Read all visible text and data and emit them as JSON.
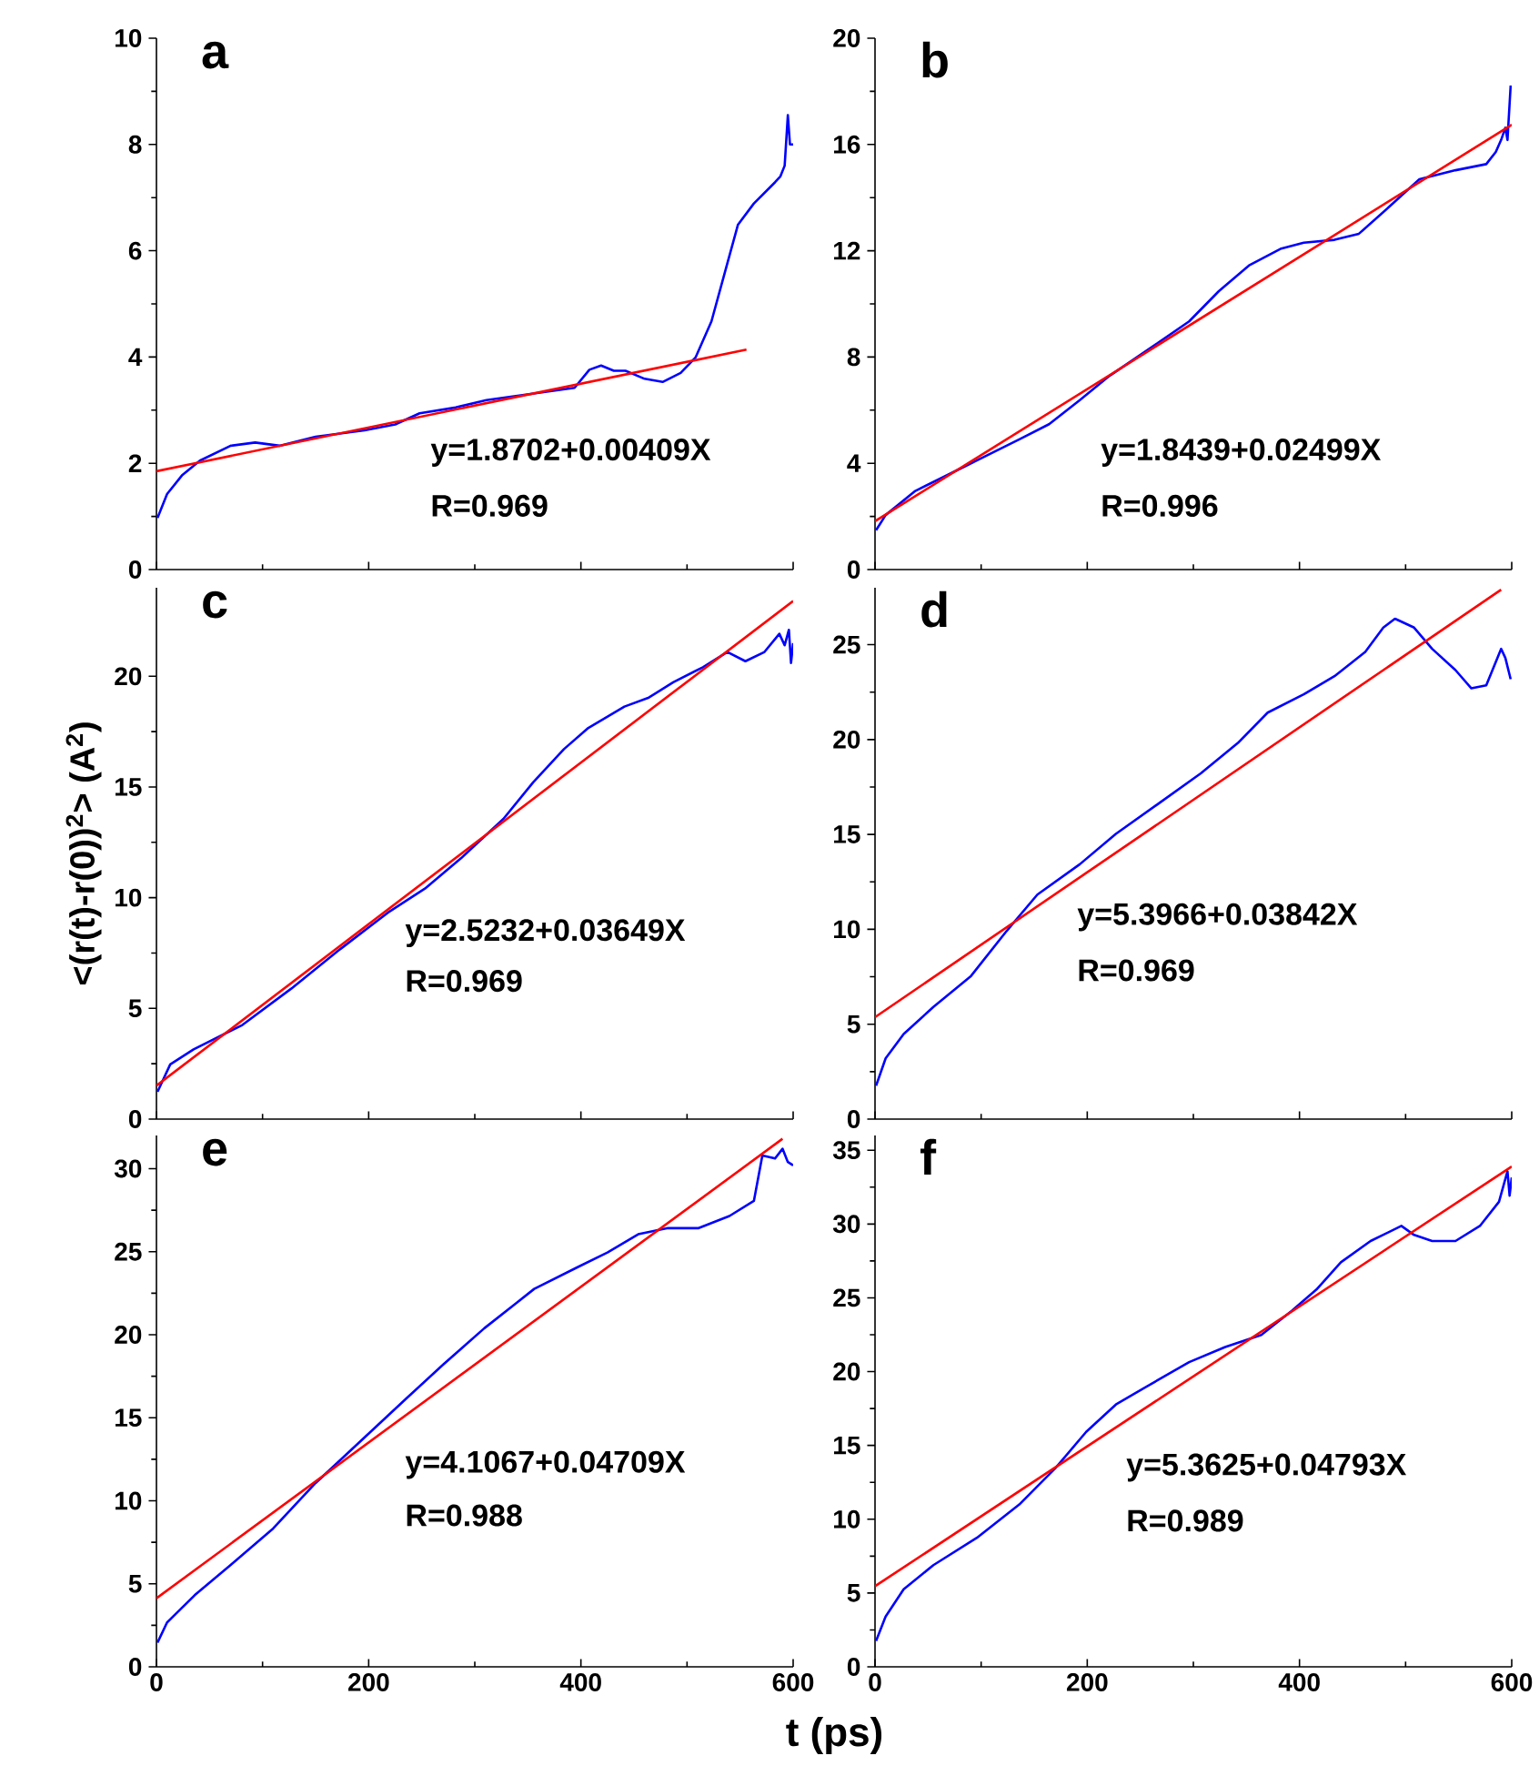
{
  "chart_data": [
    {
      "type": "line",
      "title": "a",
      "annotations": [
        "y=1.8702+0.00409X",
        "R=0.969"
      ],
      "xlim": [
        0,
        600
      ],
      "xticks": [
        0,
        200,
        400,
        600
      ],
      "ylim": [
        0,
        10
      ],
      "yticks": [
        0,
        2,
        4,
        6,
        8,
        10
      ],
      "tick_labels": "y",
      "series": [
        {
          "color": "#0000ff",
          "x": [
            1,
            10,
            24,
            41,
            70,
            93,
            116,
            150,
            196,
            225,
            248,
            282,
            311,
            351,
            394,
            408,
            419,
            431,
            442,
            460,
            477,
            494,
            508,
            523,
            537,
            548,
            563,
            583,
            588,
            592,
            595,
            597,
            600
          ],
          "values": [
            0.97,
            1.42,
            1.77,
            2.05,
            2.33,
            2.39,
            2.33,
            2.5,
            2.62,
            2.73,
            2.94,
            3.05,
            3.19,
            3.3,
            3.42,
            3.76,
            3.84,
            3.74,
            3.74,
            3.59,
            3.53,
            3.7,
            3.99,
            4.67,
            5.69,
            6.49,
            6.89,
            7.29,
            7.4,
            7.6,
            8.55,
            8.0,
            8.0
          ]
        },
        {
          "type": "line",
          "color": "#ff0000",
          "x": [
            0,
            556
          ],
          "values": [
            1.85,
            4.14
          ]
        }
      ]
    },
    {
      "type": "line",
      "title": "b",
      "annotations": [
        "y=1.8439+0.02499X",
        "R=0.996"
      ],
      "xlim": [
        0,
        600
      ],
      "xticks": [
        0,
        200,
        400,
        600
      ],
      "ylim": [
        0,
        20
      ],
      "yticks": [
        0,
        4,
        8,
        12,
        16,
        20
      ],
      "tick_labels": "y",
      "series": [
        {
          "color": "#0000ff",
          "x": [
            1,
            10,
            38,
            84,
            136,
            164,
            193,
            221,
            267,
            296,
            324,
            353,
            382,
            404,
            433,
            456,
            485,
            513,
            525,
            547,
            576,
            585,
            590,
            594,
            596,
            599
          ],
          "values": [
            1.48,
            2.05,
            2.96,
            3.87,
            4.9,
            5.47,
            6.38,
            7.29,
            8.54,
            9.34,
            10.48,
            11.46,
            12.07,
            12.3,
            12.41,
            12.64,
            13.67,
            14.69,
            14.81,
            15.03,
            15.26,
            15.72,
            16.17,
            16.63,
            16.17,
            18.22
          ]
        },
        {
          "type": "line",
          "color": "#ff0000",
          "x": [
            0,
            600
          ],
          "values": [
            1.82,
            16.74
          ]
        }
      ]
    },
    {
      "type": "line",
      "title": "c",
      "ylabel": "<(r(t)-r(0))$^{2}$> (A$^{2}$)",
      "annotations": [
        "y=2.5232+0.03649X",
        "R=0.969"
      ],
      "xlim": [
        0,
        600
      ],
      "xticks": [
        0,
        200,
        400,
        600
      ],
      "ylim": [
        0,
        24
      ],
      "yticks": [
        0,
        5,
        10,
        15,
        20
      ],
      "tick_labels": "y",
      "series": [
        {
          "color": "#0000ff",
          "x": [
            1,
            13,
            35,
            81,
            127,
            173,
            218,
            253,
            287,
            327,
            355,
            384,
            407,
            441,
            464,
            487,
            515,
            538,
            555,
            573,
            587,
            592,
            596,
            598,
            600
          ],
          "values": [
            1.23,
            2.47,
            3.15,
            4.25,
            5.89,
            7.67,
            9.32,
            10.41,
            11.78,
            13.56,
            15.21,
            16.71,
            17.67,
            18.63,
            19.04,
            19.73,
            20.41,
            21.1,
            20.68,
            21.1,
            21.92,
            21.4,
            22.1,
            20.6,
            21.5
          ]
        },
        {
          "type": "line",
          "color": "#ff0000",
          "x": [
            0,
            600
          ],
          "values": [
            1.51,
            23.4
          ]
        }
      ]
    },
    {
      "type": "line",
      "title": "d",
      "annotations": [
        "y=5.3966+0.03842X",
        "R=0.969"
      ],
      "xlim": [
        0,
        600
      ],
      "xticks": [
        0,
        200,
        400,
        600
      ],
      "ylim": [
        0,
        28
      ],
      "yticks": [
        0,
        5,
        10,
        15,
        20,
        25
      ],
      "tick_labels": "y",
      "series": [
        {
          "color": "#0000ff",
          "x": [
            1,
            10,
            27,
            55,
            90,
            124,
            153,
            193,
            227,
            267,
            307,
            342,
            370,
            404,
            433,
            462,
            479,
            490,
            508,
            525,
            547,
            562,
            576,
            590,
            594,
            599
          ],
          "values": [
            1.76,
            3.2,
            4.48,
            5.91,
            7.51,
            9.91,
            11.83,
            13.43,
            15.03,
            16.62,
            18.22,
            19.82,
            21.42,
            22.38,
            23.34,
            24.62,
            25.9,
            26.37,
            25.9,
            24.78,
            23.66,
            22.7,
            22.86,
            24.78,
            24.3,
            23.18
          ]
        },
        {
          "type": "line",
          "color": "#ff0000",
          "x": [
            0,
            590
          ],
          "values": [
            5.37,
            27.9
          ]
        }
      ]
    },
    {
      "type": "line",
      "title": "e",
      "xlabel": "t (ps)",
      "annotations": [
        "y=4.1067+0.04709X",
        "R=0.988"
      ],
      "xlim": [
        0,
        600
      ],
      "xticks": [
        0,
        200,
        400,
        600
      ],
      "ylim": [
        0,
        32
      ],
      "yticks": [
        0,
        5,
        10,
        15,
        20,
        25,
        30
      ],
      "series": [
        {
          "color": "#0000ff",
          "x": [
            1,
            10,
            36,
            70,
            110,
            150,
            196,
            236,
            270,
            309,
            338,
            356,
            396,
            425,
            454,
            482,
            511,
            540,
            563,
            571,
            583,
            590,
            595,
            600
          ],
          "values": [
            1.46,
            2.67,
            4.31,
            6.14,
            8.33,
            11.07,
            13.81,
            16.19,
            18.19,
            20.39,
            21.85,
            22.76,
            24.04,
            24.95,
            26.05,
            26.42,
            26.42,
            27.15,
            28.06,
            30.8,
            30.62,
            31.2,
            30.4,
            30.2
          ]
        },
        {
          "type": "line",
          "color": "#ff0000",
          "x": [
            0,
            590
          ],
          "values": [
            4.13,
            31.8
          ]
        }
      ]
    },
    {
      "type": "line",
      "title": "f",
      "annotations": [
        "y=5.3625+0.04793X",
        "R=0.989"
      ],
      "xlim": [
        0,
        600
      ],
      "xticks": [
        0,
        200,
        400,
        600
      ],
      "ylim": [
        0,
        36
      ],
      "yticks": [
        0,
        5,
        10,
        15,
        20,
        25,
        30,
        35
      ],
      "series": [
        {
          "color": "#0000ff",
          "x": [
            1,
            10,
            27,
            55,
            96,
            136,
            170,
            199,
            227,
            261,
            296,
            330,
            364,
            393,
            416,
            439,
            467,
            496,
            508,
            525,
            547,
            570,
            588,
            596,
            598,
            600
          ],
          "values": [
            1.76,
            3.41,
            5.25,
            6.89,
            8.74,
            11.0,
            13.46,
            15.92,
            17.77,
            19.2,
            20.64,
            21.67,
            22.49,
            24.13,
            25.56,
            27.41,
            28.85,
            29.87,
            29.26,
            28.85,
            28.85,
            29.87,
            31.51,
            33.57,
            31.92,
            33.15
          ]
        },
        {
          "type": "line",
          "color": "#ff0000",
          "x": [
            0,
            600
          ],
          "values": [
            5.46,
            33.9
          ]
        }
      ]
    }
  ]
}
